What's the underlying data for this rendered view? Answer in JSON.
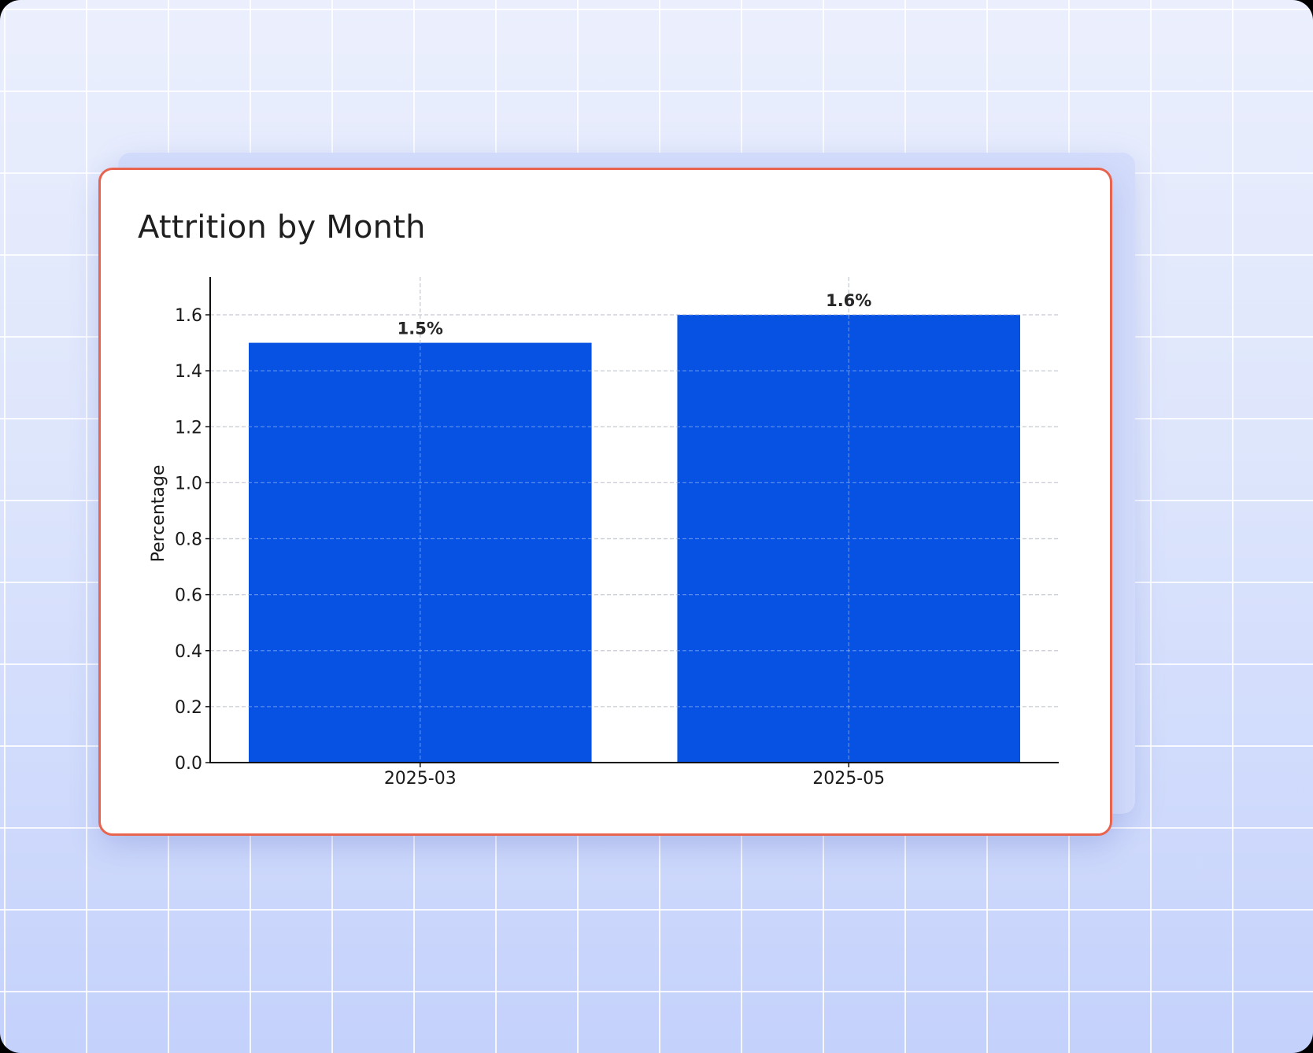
{
  "card": {
    "title": "Attrition by Month"
  },
  "colors": {
    "bar": "#0752e3",
    "card_border": "#e8644e",
    "grid": "#c8c8c8",
    "axis": "#111111"
  },
  "chart_data": {
    "type": "bar",
    "title": "Attrition by Month",
    "xlabel": "",
    "ylabel": "Percentage",
    "categories": [
      "2025-03",
      "2025-05"
    ],
    "values": [
      1.5,
      1.6
    ],
    "value_labels": [
      "1.5%",
      "1.6%"
    ],
    "ylim": [
      0,
      1.735
    ],
    "yticks": [
      0.0,
      0.2,
      0.4,
      0.6,
      0.8,
      1.0,
      1.2,
      1.4,
      1.6
    ],
    "ytick_labels": [
      "0.0",
      "0.2",
      "0.4",
      "0.6",
      "0.8",
      "1.0",
      "1.2",
      "1.4",
      "1.6"
    ],
    "grid": true,
    "legend": null
  }
}
